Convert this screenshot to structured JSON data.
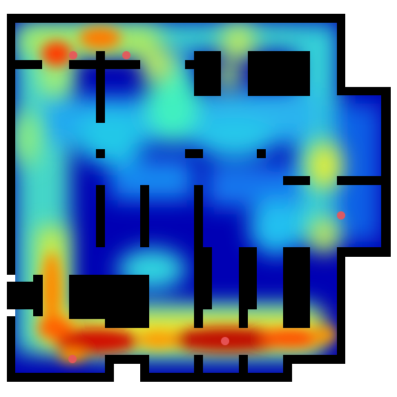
{
  "map": {
    "kind": "occupancy heatmap",
    "colormap": "jet",
    "background_color": "#ffffff",
    "wall_color": "#000000",
    "floor_base_color": "#0000b4",
    "marker_color": "#e8575a"
  },
  "markers": [
    {
      "id": "m1"
    },
    {
      "id": "m2"
    },
    {
      "id": "m3"
    },
    {
      "id": "m4"
    },
    {
      "id": "m5"
    }
  ]
}
